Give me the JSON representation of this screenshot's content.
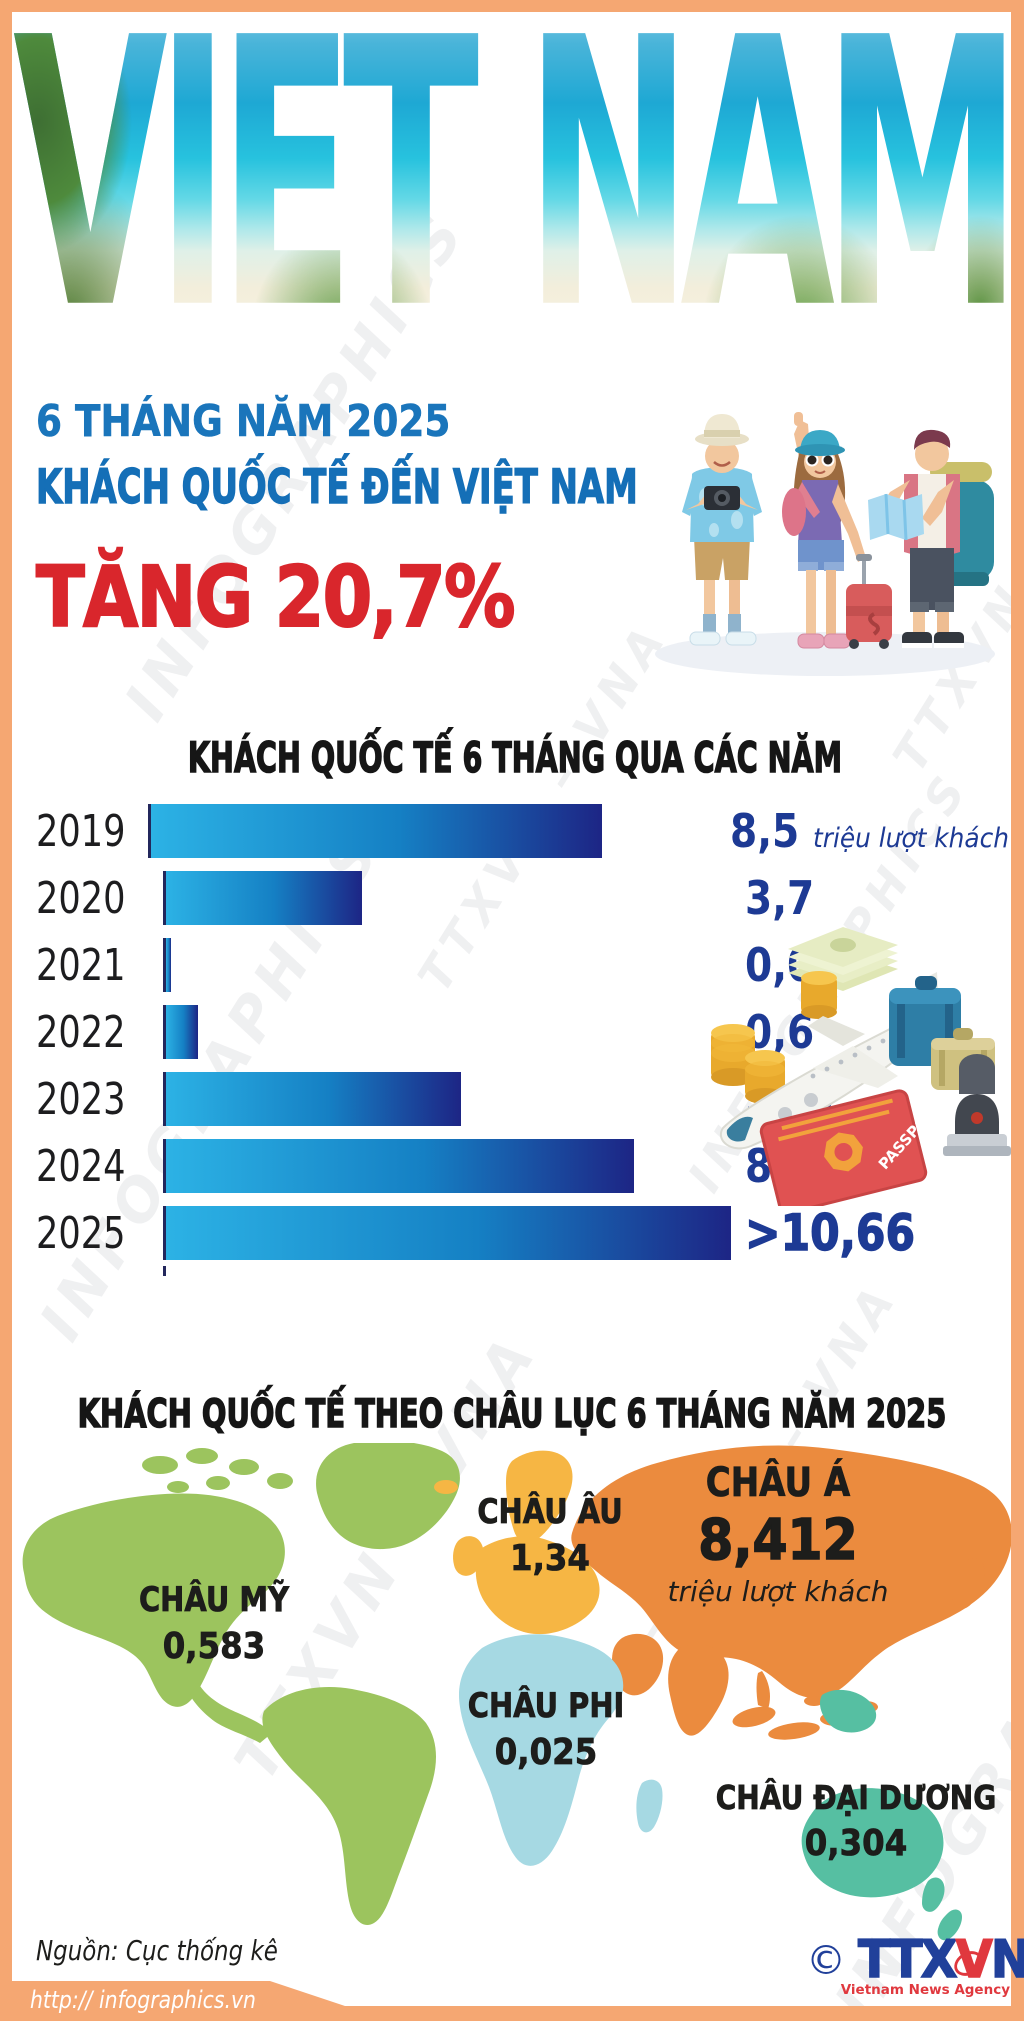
{
  "page": {
    "frame_color": "#f5a772",
    "background": "#ffffff"
  },
  "masthead": {
    "title": "VIET NAM"
  },
  "header": {
    "line1": "6 THÁNG NĂM 2025",
    "line2": "KHÁCH QUỐC TẾ ĐẾN VIỆT NAM",
    "line3": "TĂNG 20,7%",
    "line1_color": "#1a75bb",
    "line2_color": "#156fb7",
    "line3_color": "#d9262c"
  },
  "bar_section": {
    "title": "KHÁCH QUỐC TẾ 6 THÁNG QUA CÁC NĂM",
    "max_value": 10.66,
    "bar_gradient": [
      "#2cb2e5",
      "#1d2585"
    ],
    "value_color": "#1d3a94",
    "bars": [
      {
        "year": "2019",
        "label": "8,5",
        "value": 8.5,
        "suffix": "triệu lượt khách"
      },
      {
        "year": "2020",
        "label": "3,7",
        "value": 3.7
      },
      {
        "year": "2021",
        "label": "0,09",
        "value": 0.09
      },
      {
        "year": "2022",
        "label": "0,6",
        "value": 0.6
      },
      {
        "year": "2023",
        "label": "5,57",
        "value": 5.57
      },
      {
        "year": "2024",
        "label": "8,832",
        "value": 8.832
      },
      {
        "year": "2025",
        "label": ">10,66",
        "value": 10.66
      }
    ]
  },
  "map_section": {
    "title": "KHÁCH QUỐC TẾ THEO CHÂU LỤC 6 THÁNG NĂM 2025",
    "continents": [
      {
        "name": "CHÂU Á",
        "value": "8,412",
        "suffix": "triệu lượt khách",
        "color": "#eb8b3e"
      },
      {
        "name": "CHÂU ÂU",
        "value": "1,34",
        "color": "#f6b644"
      },
      {
        "name": "CHÂU MỸ",
        "value": "0,583",
        "color": "#9cc45e"
      },
      {
        "name": "CHÂU PHI",
        "value": "0,025",
        "color": "#a6d9e3"
      },
      {
        "name": "CHÂU ĐẠI DƯƠNG",
        "value": "0,304",
        "color": "#56bfa2"
      }
    ]
  },
  "footer": {
    "source": "Nguồn: Cục thống kê",
    "url": "http:// infographics.vn",
    "copyright": "©",
    "logo_part1": "TTX",
    "logo_part2": "V",
    "logo_part3": "N",
    "logo_sub": "Vietnam News Agency"
  },
  "watermark": {
    "text1": "TTXVN – VNA",
    "text2": "INFOGRAPHICS"
  },
  "chart_data": [
    {
      "type": "bar",
      "title": "KHÁCH QUỐC TẾ 6 THÁNG QUA CÁC NĂM",
      "orientation": "horizontal",
      "categories": [
        "2019",
        "2020",
        "2021",
        "2022",
        "2023",
        "2024",
        "2025"
      ],
      "values": [
        8.5,
        3.7,
        0.09,
        0.6,
        5.57,
        8.832,
        10.66
      ],
      "value_labels": [
        "8,5",
        "3,7",
        "0,09",
        "0,6",
        "5,57",
        "8,832",
        ">10,66"
      ],
      "unit": "triệu lượt khách",
      "xlabel": "",
      "ylabel": "",
      "xlim": [
        0,
        10.66
      ],
      "grid": false,
      "legend": false,
      "bar_color_gradient": [
        "#2cb2e5",
        "#1d2585"
      ],
      "note": "2025 value shown as greater-than (>10,66)"
    },
    {
      "type": "table",
      "variant": "world-map-by-continent",
      "title": "KHÁCH QUỐC TẾ THEO CHÂU LỤC 6 THÁNG NĂM 2025",
      "unit": "triệu lượt khách",
      "categories": [
        "CHÂU Á",
        "CHÂU ÂU",
        "CHÂU MỸ",
        "CHÂU PHI",
        "CHÂU ĐẠI DƯƠNG"
      ],
      "values": [
        8.412,
        1.34,
        0.583,
        0.025,
        0.304
      ],
      "value_labels": [
        "8,412",
        "1,34",
        "0,583",
        "0,025",
        "0,304"
      ],
      "region_colors": [
        "#eb8b3e",
        "#f6b644",
        "#9cc45e",
        "#a6d9e3",
        "#56bfa2"
      ]
    }
  ]
}
